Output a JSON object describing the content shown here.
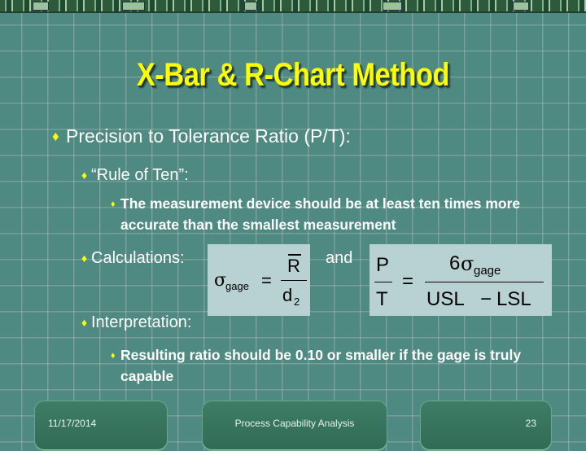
{
  "slide": {
    "title": "X-Bar & R-Chart Method",
    "level1": {
      "text": "Precision to Tolerance Ratio (P/T):"
    },
    "rule_of_ten": {
      "text": "“Rule of Ten”:",
      "detail": "The measurement device should be at least ten times more accurate than the smallest measurement"
    },
    "calculations": {
      "text": "Calculations:",
      "and": "and"
    },
    "formula1": {
      "sigma": "σ",
      "subscript": "gage",
      "equals": "=",
      "numerator": "R",
      "denominator": "d",
      "denominator_sub": "2"
    },
    "formula2": {
      "lhs_num": "P",
      "lhs_den": "T",
      "equals": "=",
      "num_coeff": "6",
      "num_sigma": "σ",
      "num_sub": "gage",
      "den_usl": "USL",
      "den_minus": "−",
      "den_lsl": "LSL"
    },
    "interpretation": {
      "text": "Interpretation:",
      "detail": "Resulting ratio should be 0.10 or smaller if the gage is truly capable"
    },
    "bullet_glyph": "♦"
  },
  "footer": {
    "date": "11/17/2014",
    "center": "Process Capability Analysis",
    "page": "23"
  },
  "colors": {
    "background": "#4f8a82",
    "title": "#ffff00",
    "text": "#ffffff",
    "formula_box": "#b8d2d3"
  }
}
